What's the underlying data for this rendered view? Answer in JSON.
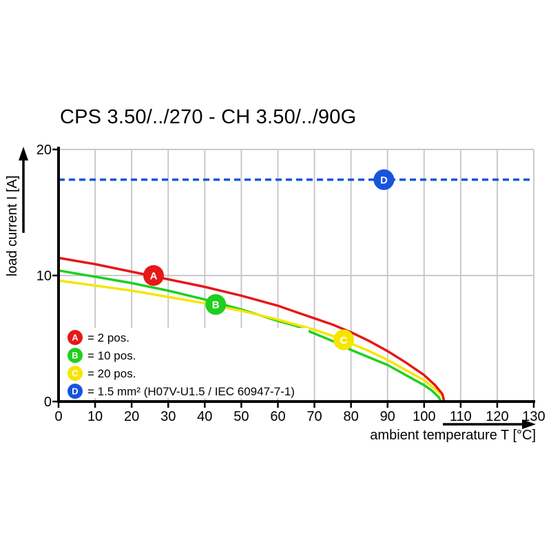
{
  "title": "CPS 3.50/../270 - CH 3.50/../90G",
  "colors": {
    "red": "#e71818",
    "green": "#1fcf1f",
    "yellow": "#f6e500",
    "blue": "#1853e0",
    "grid": "#c9c9c9",
    "axis": "#000000",
    "background": "#ffffff"
  },
  "chart_data": {
    "type": "line",
    "title": "CPS 3.50/../270 - CH 3.50/../90G",
    "xlabel": "ambient temperature T [°C]",
    "ylabel": "load current I [A]",
    "xlim": [
      0,
      130
    ],
    "ylim": [
      0,
      20
    ],
    "x_ticks": [
      0,
      10,
      20,
      30,
      40,
      50,
      60,
      70,
      80,
      90,
      100,
      110,
      120,
      130
    ],
    "y_ticks": [
      0,
      10,
      20
    ],
    "grid": {
      "vertical": true,
      "horizontal_at": [
        10,
        20
      ]
    },
    "series": [
      {
        "id": "A",
        "name": "2 pos.",
        "color": "#e71818",
        "points": [
          [
            0,
            11.4
          ],
          [
            5,
            11.15
          ],
          [
            10,
            10.9
          ],
          [
            15,
            10.6
          ],
          [
            20,
            10.3
          ],
          [
            25,
            10.0
          ],
          [
            30,
            9.7
          ],
          [
            35,
            9.4
          ],
          [
            40,
            9.1
          ],
          [
            45,
            8.75
          ],
          [
            50,
            8.4
          ],
          [
            55,
            8.0
          ],
          [
            60,
            7.6
          ],
          [
            65,
            7.1
          ],
          [
            70,
            6.6
          ],
          [
            75,
            6.1
          ],
          [
            80,
            5.5
          ],
          [
            85,
            4.8
          ],
          [
            90,
            4.0
          ],
          [
            95,
            3.1
          ],
          [
            100,
            2.1
          ],
          [
            103,
            1.3
          ],
          [
            105,
            0.6
          ],
          [
            105.5,
            0
          ]
        ]
      },
      {
        "id": "B",
        "name": "10 pos.",
        "color": "#1fcf1f",
        "points": [
          [
            0,
            10.4
          ],
          [
            5,
            10.15
          ],
          [
            10,
            9.9
          ],
          [
            15,
            9.65
          ],
          [
            20,
            9.4
          ],
          [
            25,
            9.1
          ],
          [
            30,
            8.8
          ],
          [
            35,
            8.45
          ],
          [
            40,
            8.1
          ],
          [
            45,
            7.7
          ],
          [
            50,
            7.3
          ],
          [
            55,
            6.85
          ],
          [
            60,
            6.4
          ],
          [
            65,
            6.0
          ],
          [
            70,
            5.4
          ],
          [
            75,
            4.8
          ],
          [
            80,
            4.1
          ],
          [
            85,
            3.5
          ],
          [
            90,
            2.9
          ],
          [
            95,
            2.1
          ],
          [
            100,
            1.3
          ],
          [
            102,
            0.9
          ],
          [
            104,
            0.35
          ],
          [
            104.6,
            0
          ]
        ]
      },
      {
        "id": "C",
        "name": "20 pos.",
        "color": "#f6e500",
        "points": [
          [
            0,
            9.6
          ],
          [
            5,
            9.4
          ],
          [
            10,
            9.2
          ],
          [
            15,
            9.0
          ],
          [
            20,
            8.8
          ],
          [
            25,
            8.55
          ],
          [
            30,
            8.3
          ],
          [
            35,
            8.05
          ],
          [
            40,
            7.8
          ],
          [
            45,
            7.5
          ],
          [
            50,
            7.2
          ],
          [
            55,
            6.85
          ],
          [
            60,
            6.5
          ],
          [
            65,
            6.1
          ],
          [
            70,
            5.7
          ],
          [
            75,
            5.2
          ],
          [
            80,
            4.6
          ],
          [
            85,
            4.0
          ],
          [
            90,
            3.3
          ],
          [
            95,
            2.5
          ],
          [
            100,
            1.7
          ],
          [
            103,
            1.0
          ],
          [
            105,
            0.45
          ],
          [
            105.5,
            0
          ]
        ]
      }
    ],
    "reference_line": {
      "id": "D",
      "name": "1.5 mm² (H07V-U1.5 / IEC 60947-7-1)",
      "value": 17.6,
      "color": "#1853e0",
      "style": "dashed"
    },
    "markers": [
      {
        "letter": "A",
        "t": 26,
        "i": 10.0,
        "color": "#e71818"
      },
      {
        "letter": "B",
        "t": 43,
        "i": 7.7,
        "color": "#1fcf1f"
      },
      {
        "letter": "C",
        "t": 78,
        "i": 4.9,
        "color": "#f6e500"
      },
      {
        "letter": "D",
        "t": 89,
        "i": 17.6,
        "color": "#1853e0"
      }
    ]
  },
  "legend": {
    "items": [
      {
        "letter": "A",
        "color": "#e71818",
        "label": "= 2 pos."
      },
      {
        "letter": "B",
        "color": "#1fcf1f",
        "label": "= 10 pos."
      },
      {
        "letter": "C",
        "color": "#f6e500",
        "label": "= 20 pos."
      },
      {
        "letter": "D",
        "color": "#1853e0",
        "label": "= 1.5 mm² (H07V-U1.5 / IEC 60947-7-1)"
      }
    ]
  }
}
